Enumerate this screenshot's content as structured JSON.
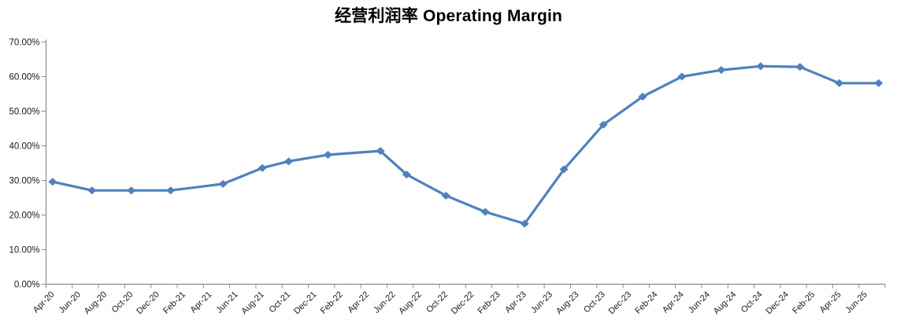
{
  "chart": {
    "title": "经营利润率 Operating Margin"
  },
  "chart_data": {
    "type": "line",
    "title": "经营利润率 Operating Margin",
    "xlabel": "",
    "ylabel": "",
    "ylim": [
      0,
      70
    ],
    "y_tick_labels": [
      "0.00%",
      "10.00%",
      "20.00%",
      "30.00%",
      "40.00%",
      "50.00%",
      "60.00%",
      "70.00%"
    ],
    "x_tick_labels": [
      "Apr-20",
      "Jun-20",
      "Aug-20",
      "Oct-20",
      "Dec-20",
      "Feb-21",
      "Apr-21",
      "Jun-21",
      "Aug-21",
      "Oct-21",
      "Dec-21",
      "Feb-22",
      "Apr-22",
      "Jun-22",
      "Aug-22",
      "Oct-22",
      "Dec-22",
      "Feb-23",
      "Apr-23",
      "Jun-23",
      "Aug-23",
      "Oct-23",
      "Dec-23",
      "Feb-24",
      "Apr-24",
      "Jun-24",
      "Aug-24",
      "Oct-24",
      "Dec-24",
      "Feb-25",
      "Apr-25",
      "Jun-25"
    ],
    "x_axis_span_months": 64,
    "x_axis_start": "Apr-20",
    "grid": false,
    "legend_position": "none",
    "line_color": "#4F81BD",
    "marker_shape": "diamond",
    "series": [
      {
        "name": "Operating Margin",
        "points": [
          {
            "label": "Apr-20",
            "month_offset": 0,
            "value": 29.6
          },
          {
            "label": "Jul-20",
            "month_offset": 3,
            "value": 27.1
          },
          {
            "label": "Oct-20",
            "month_offset": 6,
            "value": 27.1
          },
          {
            "label": "Jan-21",
            "month_offset": 9,
            "value": 27.1
          },
          {
            "label": "May-21",
            "month_offset": 13,
            "value": 29.0
          },
          {
            "label": "Aug-21",
            "month_offset": 16,
            "value": 33.6
          },
          {
            "label": "Oct-21",
            "month_offset": 18,
            "value": 35.5
          },
          {
            "label": "Jan-22",
            "month_offset": 21,
            "value": 37.4
          },
          {
            "label": "May-22",
            "month_offset": 25,
            "value": 38.5
          },
          {
            "label": "Jul-22",
            "month_offset": 27,
            "value": 31.7
          },
          {
            "label": "Oct-22",
            "month_offset": 30,
            "value": 25.6
          },
          {
            "label": "Jan-23",
            "month_offset": 33,
            "value": 20.9
          },
          {
            "label": "Apr-23",
            "month_offset": 36,
            "value": 17.5
          },
          {
            "label": "Jul-23",
            "month_offset": 39,
            "value": 33.2
          },
          {
            "label": "Oct-23",
            "month_offset": 42,
            "value": 46.1
          },
          {
            "label": "Jan-24",
            "month_offset": 45,
            "value": 54.2
          },
          {
            "label": "Apr-24",
            "month_offset": 48,
            "value": 60.0
          },
          {
            "label": "Jul-24",
            "month_offset": 51,
            "value": 61.9
          },
          {
            "label": "Oct-24",
            "month_offset": 54,
            "value": 63.0
          },
          {
            "label": "Jan-25",
            "month_offset": 57,
            "value": 62.8
          },
          {
            "label": "Apr-25",
            "month_offset": 60,
            "value": 58.1
          },
          {
            "label": "Jul-25",
            "month_offset": 63,
            "value": 58.1
          }
        ]
      }
    ]
  }
}
